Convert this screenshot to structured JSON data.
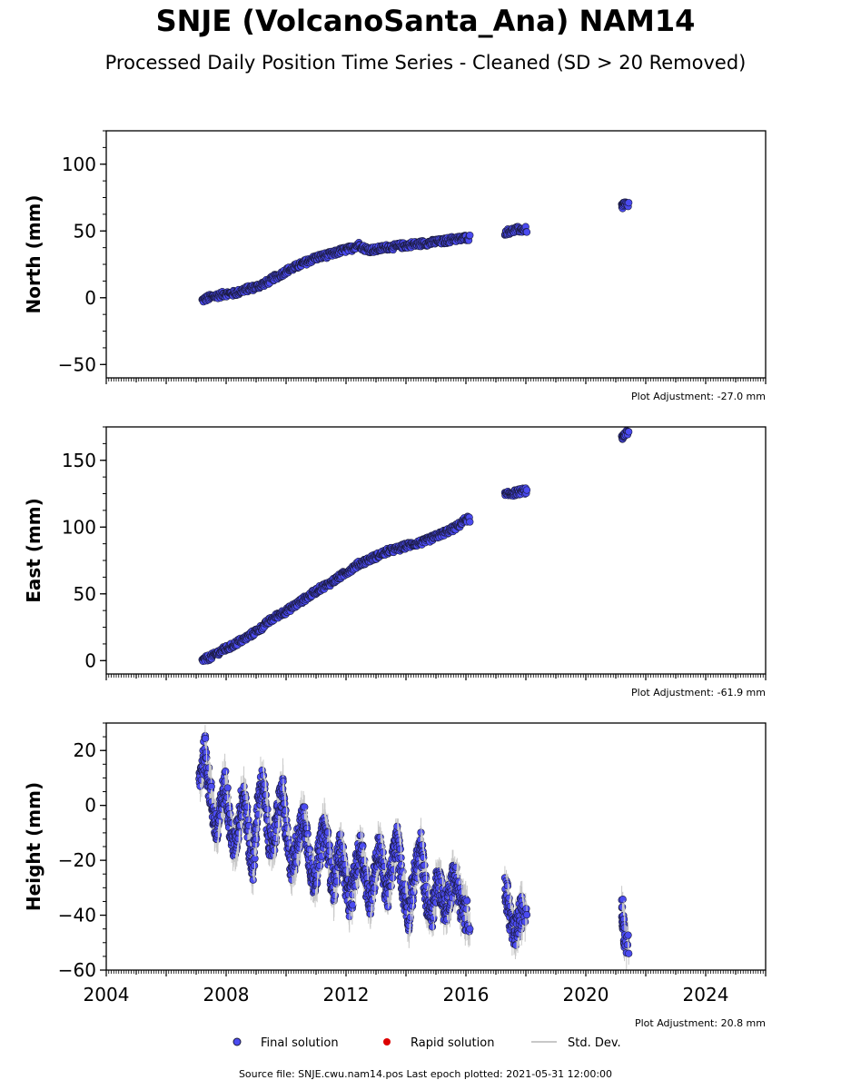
{
  "figure": {
    "title": "SNJE (VolcanoSanta_Ana) NAM14",
    "subtitle": "Processed Daily Position Time Series - Cleaned (SD > 20 Removed)",
    "source": "Source file: SNJE.cwu.nam14.pos  Last epoch plotted: 2021-05-31 12:00:00"
  },
  "legend": {
    "final": "Final solution",
    "rapid": "Rapid solution",
    "std": "Std. Dev."
  },
  "colors": {
    "final_fill": "#4b4bf0",
    "final_edge": "#1a1a3a",
    "rapid": "#dd0000",
    "stddev": "#c8c8c8"
  },
  "chart_data": [
    {
      "type": "scatter",
      "panel": "north",
      "ylabel": "North (mm)",
      "ylim": [
        -60,
        125
      ],
      "yticks": [
        -50,
        0,
        50,
        100
      ],
      "ytick_labels": [
        "−50",
        "0",
        "50",
        "100"
      ],
      "xlim": [
        2004,
        2026
      ],
      "adjustment": "Plot Adjustment: -27.0 mm",
      "series": [
        {
          "x": [
            2007.2,
            2007.4,
            2007.6,
            2007.8,
            2008.0,
            2008.2,
            2008.4,
            2008.6,
            2008.8,
            2009.0,
            2009.2,
            2009.4,
            2009.6,
            2009.8,
            2010.0,
            2010.2,
            2010.4,
            2010.6,
            2010.8,
            2011.0,
            2011.2,
            2011.4,
            2011.6,
            2011.8,
            2012.0,
            2012.2,
            2012.4,
            2012.6,
            2012.8,
            2013.0,
            2013.2,
            2013.4,
            2013.6,
            2013.8,
            2014.0,
            2014.2,
            2014.4,
            2014.6,
            2014.8,
            2015.0,
            2015.2,
            2015.4,
            2015.6,
            2015.8,
            2016.0,
            2017.3,
            2017.5,
            2017.7,
            2017.9,
            2021.2,
            2021.3
          ],
          "y": [
            -2,
            0,
            1,
            2,
            3,
            3,
            4,
            6,
            7,
            8,
            10,
            12,
            15,
            17,
            20,
            22,
            24,
            26,
            28,
            30,
            31,
            32,
            33,
            35,
            36,
            37,
            40,
            37,
            36,
            36,
            37,
            38,
            38,
            39,
            39,
            40,
            40,
            41,
            41,
            42,
            42,
            43,
            44,
            44,
            45,
            49,
            50,
            51,
            51,
            68,
            70
          ]
        }
      ]
    },
    {
      "type": "scatter",
      "panel": "east",
      "ylabel": "East (mm)",
      "ylim": [
        -10,
        175
      ],
      "yticks": [
        0,
        50,
        100,
        150
      ],
      "ytick_labels": [
        "0",
        "50",
        "100",
        "150"
      ],
      "xlim": [
        2004,
        2026
      ],
      "adjustment": "Plot Adjustment: -61.9 mm",
      "series": [
        {
          "x": [
            2007.2,
            2007.4,
            2007.6,
            2007.8,
            2008.0,
            2008.2,
            2008.4,
            2008.6,
            2008.8,
            2009.0,
            2009.2,
            2009.4,
            2009.6,
            2009.8,
            2010.0,
            2010.2,
            2010.4,
            2010.6,
            2010.8,
            2011.0,
            2011.2,
            2011.4,
            2011.6,
            2011.8,
            2012.0,
            2012.2,
            2012.4,
            2012.6,
            2012.8,
            2013.0,
            2013.2,
            2013.4,
            2013.6,
            2013.8,
            2014.0,
            2014.2,
            2014.4,
            2014.6,
            2014.8,
            2015.0,
            2015.2,
            2015.4,
            2015.6,
            2015.8,
            2016.0,
            2017.3,
            2017.5,
            2017.7,
            2017.9,
            2021.2,
            2021.3
          ],
          "y": [
            0,
            2,
            4,
            7,
            9,
            11,
            14,
            16,
            19,
            22,
            25,
            29,
            32,
            35,
            37,
            40,
            43,
            46,
            49,
            52,
            55,
            57,
            60,
            63,
            66,
            69,
            72,
            74,
            76,
            78,
            80,
            82,
            83,
            84,
            86,
            87,
            88,
            89,
            91,
            93,
            95,
            97,
            99,
            102,
            106,
            124,
            125,
            126,
            127,
            166,
            170
          ]
        }
      ]
    },
    {
      "type": "scatter",
      "panel": "height",
      "ylabel": "Height (mm)",
      "ylim": [
        -60,
        30
      ],
      "yticks": [
        -60,
        -40,
        -20,
        0,
        20
      ],
      "ytick_labels": [
        "−60",
        "−40",
        "−20",
        "0",
        "20"
      ],
      "xlim": [
        2004,
        2026
      ],
      "xticks": [
        2004,
        2008,
        2012,
        2016,
        2020,
        2024
      ],
      "xtick_labels": [
        "2004",
        "2008",
        "2012",
        "2016",
        "2020",
        "2024"
      ],
      "adjustment": "Plot Adjustment: 20.8 mm",
      "series": [
        {
          "x": [
            2007.1,
            2007.2,
            2007.3,
            2007.4,
            2007.5,
            2007.6,
            2007.7,
            2007.8,
            2007.9,
            2008.0,
            2008.1,
            2008.2,
            2008.3,
            2008.4,
            2008.5,
            2008.6,
            2008.7,
            2008.8,
            2008.9,
            2009.0,
            2009.1,
            2009.2,
            2009.3,
            2009.4,
            2009.5,
            2009.6,
            2009.7,
            2009.8,
            2009.9,
            2010.0,
            2010.1,
            2010.2,
            2010.3,
            2010.4,
            2010.5,
            2010.6,
            2010.7,
            2010.8,
            2010.9,
            2011.0,
            2011.1,
            2011.2,
            2011.3,
            2011.4,
            2011.5,
            2011.6,
            2011.7,
            2011.8,
            2011.9,
            2012.0,
            2012.1,
            2012.2,
            2012.3,
            2012.4,
            2012.5,
            2012.6,
            2012.7,
            2012.8,
            2012.9,
            2013.0,
            2013.1,
            2013.2,
            2013.3,
            2013.4,
            2013.5,
            2013.6,
            2013.7,
            2013.8,
            2013.9,
            2014.0,
            2014.1,
            2014.2,
            2014.3,
            2014.4,
            2014.5,
            2014.6,
            2014.7,
            2014.8,
            2014.9,
            2015.0,
            2015.1,
            2015.2,
            2015.3,
            2015.4,
            2015.5,
            2015.6,
            2015.7,
            2015.8,
            2015.9,
            2016.0,
            2017.3,
            2017.4,
            2017.5,
            2017.6,
            2017.7,
            2017.8,
            2017.9,
            2021.2,
            2021.25,
            2021.3
          ],
          "y": [
            8,
            15,
            20,
            10,
            3,
            -5,
            -10,
            -3,
            5,
            8,
            -5,
            -12,
            -15,
            -8,
            0,
            5,
            -5,
            -18,
            -22,
            -8,
            3,
            8,
            2,
            -10,
            -15,
            -12,
            -5,
            2,
            5,
            -10,
            -18,
            -22,
            -18,
            -12,
            -8,
            -5,
            -12,
            -20,
            -28,
            -25,
            -18,
            -12,
            -8,
            -15,
            -25,
            -30,
            -22,
            -15,
            -20,
            -28,
            -35,
            -32,
            -25,
            -20,
            -15,
            -22,
            -30,
            -35,
            -28,
            -22,
            -15,
            -20,
            -28,
            -32,
            -25,
            -18,
            -12,
            -20,
            -30,
            -35,
            -40,
            -32,
            -25,
            -20,
            -15,
            -25,
            -35,
            -40,
            -38,
            -30,
            -28,
            -32,
            -38,
            -35,
            -30,
            -25,
            -28,
            -35,
            -38,
            -40,
            -30,
            -35,
            -42,
            -48,
            -45,
            -40,
            -38,
            -35,
            -42,
            -48
          ]
        }
      ]
    }
  ]
}
